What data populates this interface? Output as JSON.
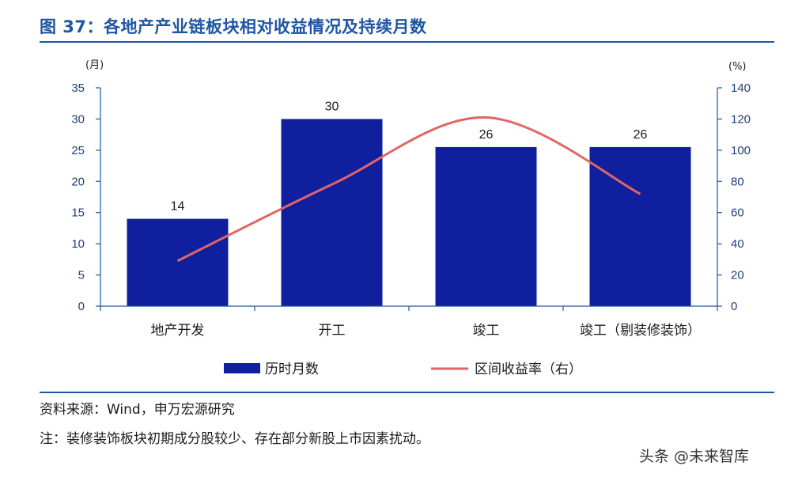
{
  "title": "图 37：各地产产业链板块相对收益情况及持续月数",
  "source": "资料来源：Wind，申万宏源研究",
  "note": "注：装修装饰板块初期成分股较少、存在部分新股上市因素扰动。",
  "watermark": "头条 @未来智库",
  "colors": {
    "bar": "#0f1f9e",
    "line": "#e06666",
    "title": "#1f56a3",
    "axis": "#1f56a3"
  },
  "chart_data": {
    "type": "bar",
    "categories": [
      "地产开发",
      "开工",
      "竣工",
      "竣工（剔装修装饰）"
    ],
    "series": [
      {
        "name": "历时月数",
        "type": "bar",
        "axis": "left",
        "values": [
          14,
          30,
          26,
          26
        ],
        "plotted": [
          14,
          30,
          25.5,
          25.5
        ]
      },
      {
        "name": "区间收益率（右）",
        "type": "line",
        "axis": "right",
        "smooth": true,
        "values": [
          29,
          78,
          121,
          72
        ]
      }
    ],
    "left_axis": {
      "unit": "(月)",
      "min": 0,
      "max": 35,
      "ticks": [
        0,
        5,
        10,
        15,
        20,
        25,
        30,
        35
      ]
    },
    "right_axis": {
      "unit": "(%)",
      "min": 0,
      "max": 140,
      "ticks": [
        0,
        20,
        40,
        60,
        80,
        100,
        120,
        140
      ]
    },
    "legend_position": "bottom",
    "grid": false
  }
}
